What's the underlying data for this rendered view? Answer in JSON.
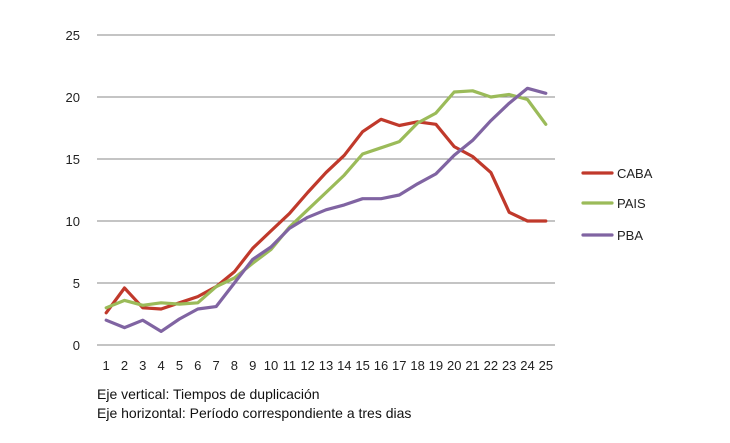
{
  "chart_data": {
    "type": "line",
    "categories": [
      "1",
      "2",
      "3",
      "4",
      "5",
      "6",
      "7",
      "8",
      "9",
      "10",
      "11",
      "12",
      "13",
      "14",
      "15",
      "16",
      "17",
      "18",
      "19",
      "20",
      "21",
      "22",
      "23",
      "24",
      "25"
    ],
    "ylim": [
      0,
      25
    ],
    "yticks": [
      0,
      5,
      10,
      15,
      20,
      25
    ],
    "grid": true,
    "legend_position": "right",
    "series": [
      {
        "name": "CABA",
        "color": "#c0392b",
        "values": [
          2.6,
          4.6,
          3.0,
          2.9,
          3.4,
          3.9,
          4.7,
          5.9,
          7.8,
          9.2,
          10.6,
          12.3,
          13.9,
          15.3,
          17.2,
          18.2,
          17.7,
          18.0,
          17.8,
          16.0,
          15.2,
          13.9,
          10.7,
          10.0,
          10.0
        ]
      },
      {
        "name": "PAIS",
        "color": "#9bbb59",
        "values": [
          3.0,
          3.6,
          3.2,
          3.4,
          3.3,
          3.4,
          4.7,
          5.4,
          6.6,
          7.7,
          9.5,
          10.9,
          12.3,
          13.7,
          15.4,
          15.9,
          16.4,
          17.9,
          18.7,
          20.4,
          20.5,
          20.0,
          20.2,
          19.8,
          17.8
        ]
      },
      {
        "name": "PBA",
        "color": "#8064a2",
        "values": [
          2.0,
          1.4,
          2.0,
          1.1,
          2.1,
          2.9,
          3.1,
          5.0,
          6.9,
          7.9,
          9.4,
          10.3,
          10.9,
          11.3,
          11.8,
          11.8,
          12.1,
          13.0,
          13.8,
          15.3,
          16.5,
          18.1,
          19.5,
          20.7,
          20.3
        ]
      }
    ]
  },
  "captions": {
    "line1": "Eje vertical: Tiempos de duplicación",
    "line2": "Eje horizontal: Período correspondiente a tres dias"
  }
}
